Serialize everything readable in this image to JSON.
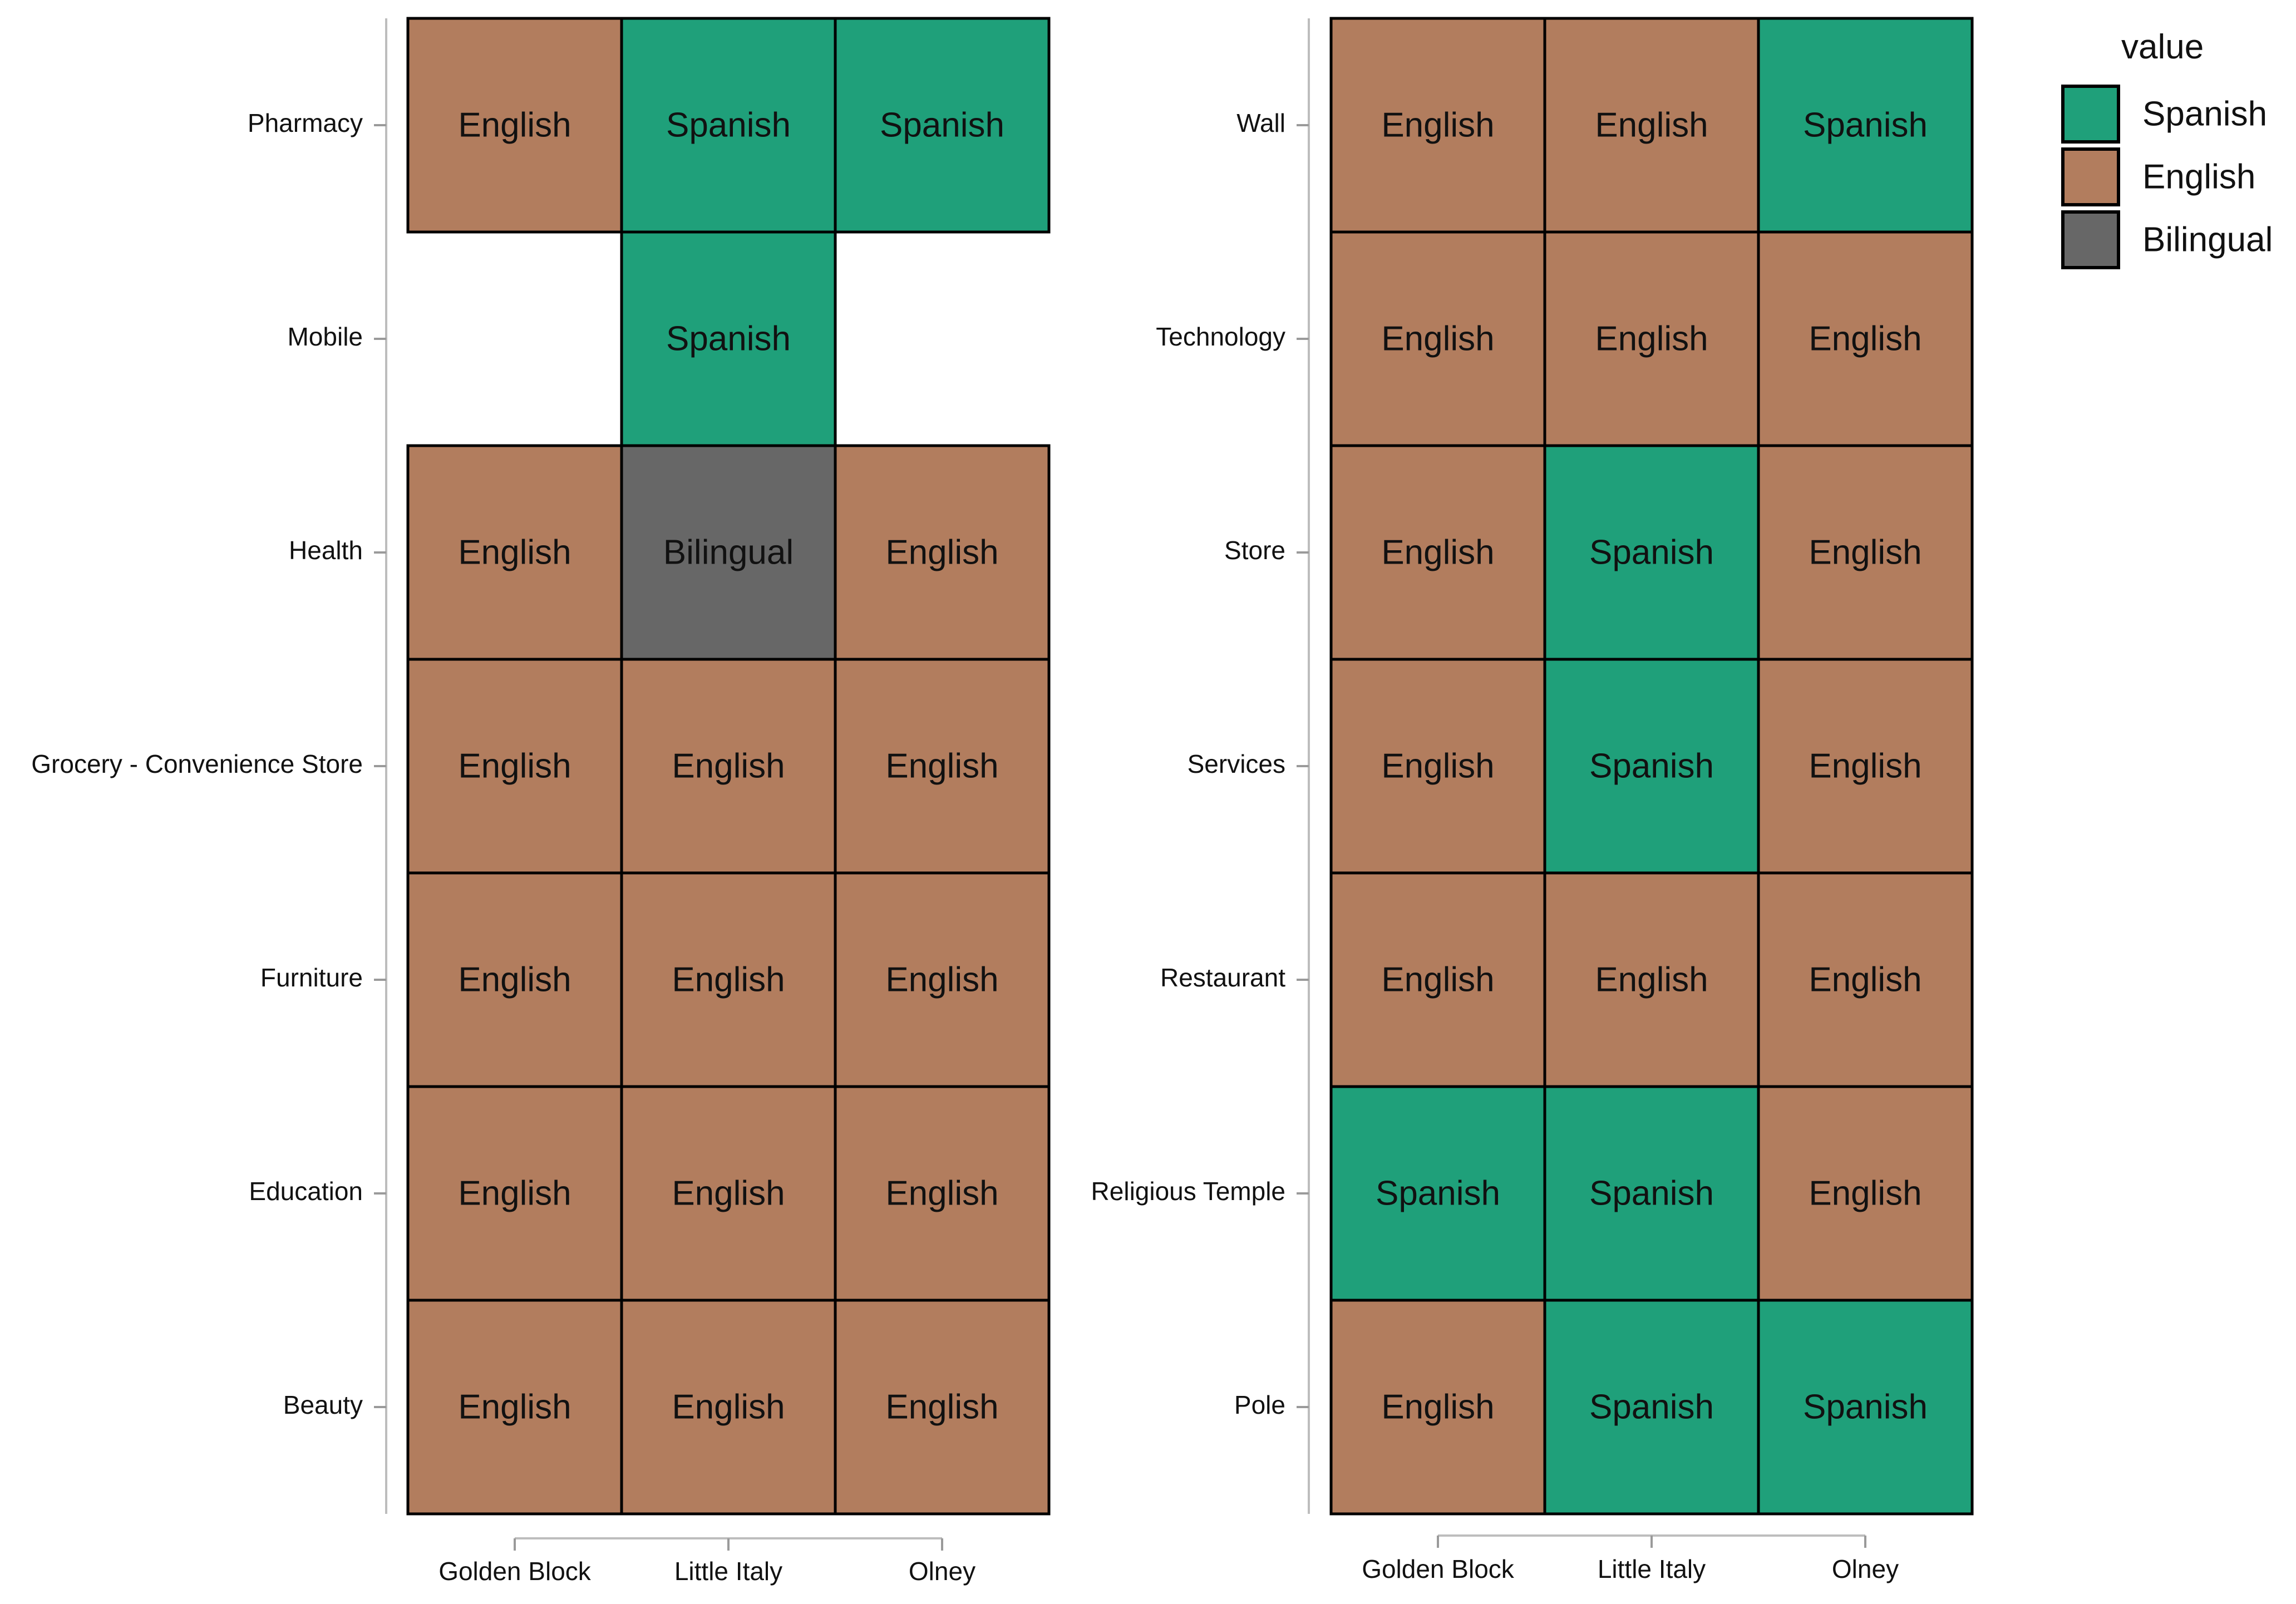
{
  "chart_data": [
    {
      "type": "heatmap",
      "x_categories": [
        "Golden Block",
        "Little Italy",
        "Olney"
      ],
      "y_categories": [
        "Pharmacy",
        "Mobile",
        "Health",
        "Grocery - Convenience Store",
        "Furniture",
        "Education",
        "Beauty"
      ],
      "cells": [
        {
          "y": "Pharmacy",
          "x": "Golden Block",
          "value": "English"
        },
        {
          "y": "Pharmacy",
          "x": "Little Italy",
          "value": "Spanish"
        },
        {
          "y": "Pharmacy",
          "x": "Olney",
          "value": "Spanish"
        },
        {
          "y": "Mobile",
          "x": "Little Italy",
          "value": "Spanish"
        },
        {
          "y": "Health",
          "x": "Golden Block",
          "value": "English"
        },
        {
          "y": "Health",
          "x": "Little Italy",
          "value": "Bilingual"
        },
        {
          "y": "Health",
          "x": "Olney",
          "value": "English"
        },
        {
          "y": "Grocery - Convenience Store",
          "x": "Golden Block",
          "value": "English"
        },
        {
          "y": "Grocery - Convenience Store",
          "x": "Little Italy",
          "value": "English"
        },
        {
          "y": "Grocery - Convenience Store",
          "x": "Olney",
          "value": "English"
        },
        {
          "y": "Furniture",
          "x": "Golden Block",
          "value": "English"
        },
        {
          "y": "Furniture",
          "x": "Little Italy",
          "value": "English"
        },
        {
          "y": "Furniture",
          "x": "Olney",
          "value": "English"
        },
        {
          "y": "Education",
          "x": "Golden Block",
          "value": "English"
        },
        {
          "y": "Education",
          "x": "Little Italy",
          "value": "English"
        },
        {
          "y": "Education",
          "x": "Olney",
          "value": "English"
        },
        {
          "y": "Beauty",
          "x": "Golden Block",
          "value": "English"
        },
        {
          "y": "Beauty",
          "x": "Little Italy",
          "value": "English"
        },
        {
          "y": "Beauty",
          "x": "Olney",
          "value": "English"
        }
      ]
    },
    {
      "type": "heatmap",
      "x_categories": [
        "Golden Block",
        "Little Italy",
        "Olney"
      ],
      "y_categories": [
        "Wall",
        "Technology",
        "Store",
        "Services",
        "Restaurant",
        "Religious Temple",
        "Pole"
      ],
      "cells": [
        {
          "y": "Wall",
          "x": "Golden Block",
          "value": "English"
        },
        {
          "y": "Wall",
          "x": "Little Italy",
          "value": "English"
        },
        {
          "y": "Wall",
          "x": "Olney",
          "value": "Spanish"
        },
        {
          "y": "Technology",
          "x": "Golden Block",
          "value": "English"
        },
        {
          "y": "Technology",
          "x": "Little Italy",
          "value": "English"
        },
        {
          "y": "Technology",
          "x": "Olney",
          "value": "English"
        },
        {
          "y": "Store",
          "x": "Golden Block",
          "value": "English"
        },
        {
          "y": "Store",
          "x": "Little Italy",
          "value": "Spanish"
        },
        {
          "y": "Store",
          "x": "Olney",
          "value": "English"
        },
        {
          "y": "Services",
          "x": "Golden Block",
          "value": "English"
        },
        {
          "y": "Services",
          "x": "Little Italy",
          "value": "Spanish"
        },
        {
          "y": "Services",
          "x": "Olney",
          "value": "English"
        },
        {
          "y": "Restaurant",
          "x": "Golden Block",
          "value": "English"
        },
        {
          "y": "Restaurant",
          "x": "Little Italy",
          "value": "English"
        },
        {
          "y": "Restaurant",
          "x": "Olney",
          "value": "English"
        },
        {
          "y": "Religious Temple",
          "x": "Golden Block",
          "value": "Spanish"
        },
        {
          "y": "Religious Temple",
          "x": "Little Italy",
          "value": "Spanish"
        },
        {
          "y": "Religious Temple",
          "x": "Olney",
          "value": "English"
        },
        {
          "y": "Pole",
          "x": "Golden Block",
          "value": "English"
        },
        {
          "y": "Pole",
          "x": "Little Italy",
          "value": "Spanish"
        },
        {
          "y": "Pole",
          "x": "Olney",
          "value": "Spanish"
        }
      ]
    }
  ],
  "legend": {
    "title": "value",
    "placement": "top-right",
    "items": [
      {
        "label": "Spanish",
        "color": "#1fa07a"
      },
      {
        "label": "English",
        "color": "#b27d5e"
      },
      {
        "label": "Bilingual",
        "color": "#676767"
      }
    ]
  }
}
